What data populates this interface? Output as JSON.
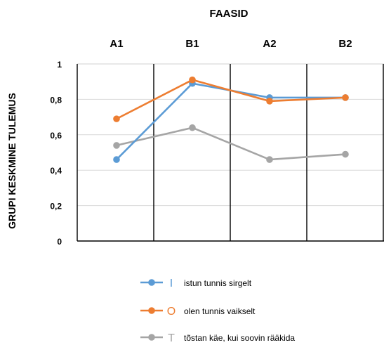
{
  "chart_data": {
    "type": "line",
    "title": "FAASID",
    "ylabel": "GRUPI KESKMINE TULEMUS",
    "xlabel": "",
    "categories": [
      "A1",
      "B1",
      "A2",
      "B2"
    ],
    "ylim": [
      0,
      1
    ],
    "yticks": [
      {
        "value": 0,
        "label": "0"
      },
      {
        "value": 0.2,
        "label": "0,2"
      },
      {
        "value": 0.4,
        "label": "0,4"
      },
      {
        "value": 0.6,
        "label": "0,6"
      },
      {
        "value": 0.8,
        "label": "0,8"
      },
      {
        "value": 1,
        "label": "1"
      }
    ],
    "grid": true,
    "legend_position": "bottom",
    "series": [
      {
        "name": "istun tunnis sirgelt",
        "marker_letter": "I",
        "color": "#5b9bd5",
        "values": [
          0.46,
          0.89,
          0.81,
          0.81
        ]
      },
      {
        "name": "olen tunnis vaikselt",
        "marker_letter": "O",
        "color": "#ed7d31",
        "values": [
          0.69,
          0.91,
          0.79,
          0.81
        ]
      },
      {
        "name": "tõstan käe, kui soovin rääkida",
        "marker_letter": "T",
        "color": "#a5a5a5",
        "values": [
          0.54,
          0.64,
          0.46,
          0.49
        ]
      }
    ]
  }
}
